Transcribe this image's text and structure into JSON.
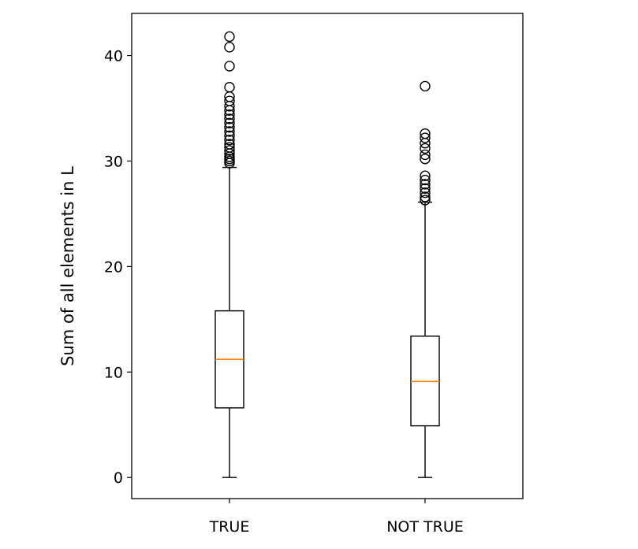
{
  "chart_data": {
    "type": "box",
    "title": "",
    "xlabel": "",
    "ylabel": "Sum of all elements in L",
    "ylim": [
      -2.0,
      44.0
    ],
    "yticks": [
      0,
      10,
      20,
      30,
      40
    ],
    "grid": false,
    "categories": [
      "TRUE",
      "NOT TRUE"
    ],
    "boxes": [
      {
        "label": "TRUE",
        "whisker_low": 0.0,
        "q1": 6.6,
        "median": 11.2,
        "q3": 15.8,
        "whisker_high": 29.4,
        "outliers": [
          29.8,
          30.0,
          30.2,
          30.4,
          30.7,
          31.0,
          31.3,
          31.6,
          32.0,
          32.4,
          32.8,
          33.2,
          33.6,
          34.0,
          34.4,
          34.8,
          35.2,
          35.7,
          36.1,
          37.0,
          39.0,
          40.8,
          41.8
        ]
      },
      {
        "label": "NOT TRUE",
        "whisker_low": 0.0,
        "q1": 4.9,
        "median": 9.1,
        "q3": 13.4,
        "whisker_high": 26.1,
        "outliers": [
          26.3,
          26.6,
          27.0,
          27.4,
          27.8,
          28.2,
          28.6,
          30.2,
          30.6,
          31.2,
          31.7,
          32.2,
          32.6,
          37.1
        ]
      }
    ],
    "colors": {
      "box": "#000000",
      "median": "#ff7f0e",
      "outlier": "#000000"
    }
  }
}
